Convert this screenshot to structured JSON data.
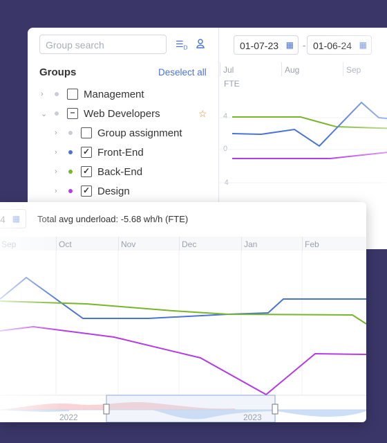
{
  "sidebar": {
    "search_placeholder": "Group search",
    "title": "Groups",
    "deselect_label": "Deselect all",
    "items": [
      {
        "label": "Management",
        "check": "",
        "dot": "#c9ccd2"
      },
      {
        "label": "Web Developers",
        "check": "–",
        "dot": "#c9ccd2"
      },
      {
        "label": "Group assignment",
        "check": "",
        "dot": "#c9ccd2"
      },
      {
        "label": "Front-End",
        "check": "✓",
        "dot": "#4a73d8"
      },
      {
        "label": "Back-End",
        "check": "✓",
        "dot": "#77b52b"
      },
      {
        "label": "Design",
        "check": "✓",
        "dot": "#b43ce6"
      }
    ]
  },
  "toolbar": {
    "date_from": "01-07-23",
    "date_to": "01-06-24",
    "date_separator": "-",
    "front_date_fragment": "4",
    "avg_text": "Total avg underload: -5.68 wh/h (FTE)"
  },
  "back_chart": {
    "months": [
      "Jul",
      "Aug",
      "Sep"
    ],
    "y_label": "FTE",
    "y_ticks": [
      "4",
      "0",
      "-4"
    ]
  },
  "front_chart": {
    "months": [
      "Sep",
      "Oct",
      "Nov",
      "Dec",
      "Jan",
      "Feb"
    ],
    "navigator_years": [
      "2022",
      "2023"
    ]
  },
  "colors": {
    "front_end": "#4a73d8",
    "back_end": "#77b52b",
    "design": "#b43ce6",
    "accent": "#4a73d8",
    "star": "#e8882a",
    "background": "#3a3668"
  },
  "icons": [
    "sort-icon",
    "user-icon",
    "calendar-icon",
    "star-icon",
    "chevron-right-icon",
    "chevron-down-icon"
  ]
}
